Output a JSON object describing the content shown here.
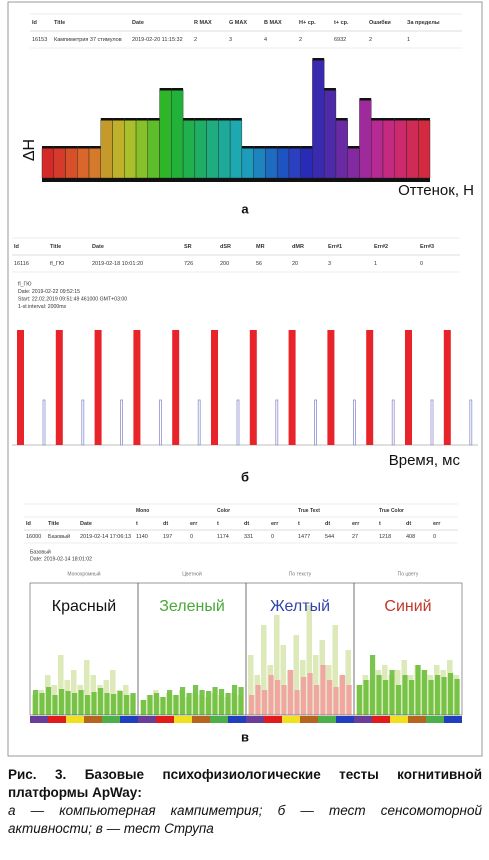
{
  "panel_a": {
    "label": "а",
    "y_label": "ΔH",
    "x_label": "Оттенок, H",
    "table": {
      "headers": [
        "Id",
        "Title",
        "Date",
        "R MAX",
        "G MAX",
        "B MAX",
        "H+ ср.",
        "t+ ср.",
        "Ошибки",
        "За пределы"
      ],
      "rows": [
        [
          "16153",
          "Кампиметрия 37 стимулов",
          "2019-02-20 11:15:32",
          "2",
          "3",
          "4",
          "2",
          "6932",
          "2",
          "1"
        ]
      ]
    },
    "bars": {
      "values": [
        30,
        30,
        30,
        30,
        30,
        58,
        58,
        58,
        58,
        58,
        88,
        88,
        58,
        58,
        58,
        58,
        58,
        30,
        30,
        30,
        30,
        30,
        30,
        118,
        88,
        58,
        30,
        78,
        58,
        58,
        58,
        58,
        58
      ],
      "colors": [
        "#d42a2a",
        "#d63a2a",
        "#d8502a",
        "#d9662a",
        "#d47a2a",
        "#c49a2a",
        "#bfb22a",
        "#a9c02a",
        "#86c02a",
        "#5dbd2a",
        "#2fb52a",
        "#22b23a",
        "#20b04e",
        "#1fae66",
        "#1eac80",
        "#1eaa98",
        "#1ea8b0",
        "#1e9cbc",
        "#1e84c0",
        "#1e6cc2",
        "#1e54c2",
        "#2a40c0",
        "#2a2ab8",
        "#3a2ab0",
        "#4c2aa8",
        "#6a2aa4",
        "#842aa0",
        "#9e2a9c",
        "#b62a94",
        "#c42a80",
        "#cc2a6c",
        "#d02a56",
        "#d22a40"
      ]
    }
  },
  "panel_b": {
    "label": "б",
    "x_label": "Время, мс",
    "table": {
      "headers": [
        "Id",
        "Title",
        "Date",
        "SR",
        "dSR",
        "MR",
        "dMR",
        "Err#1",
        "Err#2",
        "Err#3"
      ],
      "rows": [
        [
          "16116",
          "fl_ГЮ",
          "2019-02-18 10:01:20",
          "726",
          "200",
          "56",
          "20",
          "3",
          "1",
          "0"
        ]
      ]
    },
    "info": [
      "fl_ГЮ",
      "Date: 2019-02-22 09:52:15",
      "Start: 22.02.2019 09:51:49 461000 GMT+03:00",
      "1-st interval: 2000ms"
    ],
    "stimuli": {
      "values": [
        115,
        115,
        115,
        115,
        115,
        115,
        115,
        115,
        115,
        115,
        115,
        115
      ],
      "color": "#e8242a"
    },
    "responses": {
      "values": [
        45,
        45,
        45,
        45,
        45,
        45,
        45,
        45,
        45,
        45,
        45,
        45
      ],
      "color": "#8f8fd0"
    }
  },
  "panel_c": {
    "label": "в",
    "table": {
      "groups": [
        "Mono",
        "Color",
        "True Text",
        "True Color"
      ],
      "headers": [
        "Id",
        "Title",
        "Date",
        "t",
        "dt",
        "err",
        "t",
        "dt",
        "err",
        "t",
        "dt",
        "err",
        "t",
        "dt",
        "err"
      ],
      "rows": [
        [
          "16000",
          "Базовый",
          "2019-02-14 17:06:13",
          "1140",
          "197",
          "0",
          "1174",
          "331",
          "0",
          "1477",
          "544",
          "27",
          "1218",
          "408",
          "0"
        ]
      ]
    },
    "info": [
      "Базовый",
      "Date: 2019-02-14 18:01:02"
    ],
    "legend": [
      "Монохромный",
      "Цветной",
      "По тексту",
      "По цвету"
    ],
    "strip_colors": [
      "#6a3d9a",
      "#e31a1c",
      "#f0e020",
      "#b5651d",
      "#4daf4a",
      "#1f3fbf"
    ],
    "panels": [
      {
        "word": "Красный",
        "word_color": "#111111",
        "color": "#6cbf3c",
        "background_color": "#dde9b8",
        "background": [
          20,
          25,
          40,
          30,
          60,
          35,
          45,
          30,
          55,
          40,
          30,
          35,
          45,
          25,
          30,
          20
        ],
        "values": [
          25,
          22,
          28,
          20,
          26,
          24,
          22,
          25,
          20,
          23,
          27,
          22,
          21,
          24,
          20,
          22
        ]
      },
      {
        "word": "Зеленый",
        "word_color": "#4aa83a",
        "color": "#6cbf3c",
        "background_color": "#dde9b8",
        "background": [
          15,
          20,
          25,
          18,
          22,
          20,
          25,
          18,
          22,
          20,
          18,
          22,
          20,
          18,
          22,
          20
        ],
        "values": [
          15,
          20,
          22,
          18,
          25,
          20,
          28,
          22,
          30,
          25,
          24,
          28,
          26,
          22,
          30,
          28
        ]
      },
      {
        "word": "Желтый",
        "word_color": "#3344aa",
        "color": "#f2a0a0",
        "background_color": "#dde9b8",
        "background": [
          60,
          40,
          90,
          50,
          100,
          70,
          45,
          80,
          55,
          110,
          60,
          75,
          50,
          90,
          40,
          65
        ],
        "values": [
          20,
          30,
          25,
          40,
          35,
          30,
          45,
          25,
          38,
          42,
          30,
          50,
          35,
          28,
          40,
          30
        ]
      },
      {
        "word": "Синий",
        "word_color": "#c0392b",
        "color": "#6cbf3c",
        "background_color": "#dde9b8",
        "background": [
          30,
          40,
          35,
          45,
          50,
          40,
          45,
          55,
          40,
          50,
          45,
          40,
          50,
          45,
          55,
          40
        ],
        "values": [
          30,
          35,
          60,
          40,
          35,
          45,
          30,
          40,
          35,
          50,
          45,
          35,
          40,
          38,
          42,
          36
        ]
      }
    ]
  },
  "caption": {
    "title": "Рис. 3. Базовые психофизиологические тесты когнитивной платформы ApWay:",
    "text": "а — компьютерная кампиметрия; б — тест сенсомоторной активности; в — тест Струпа"
  }
}
